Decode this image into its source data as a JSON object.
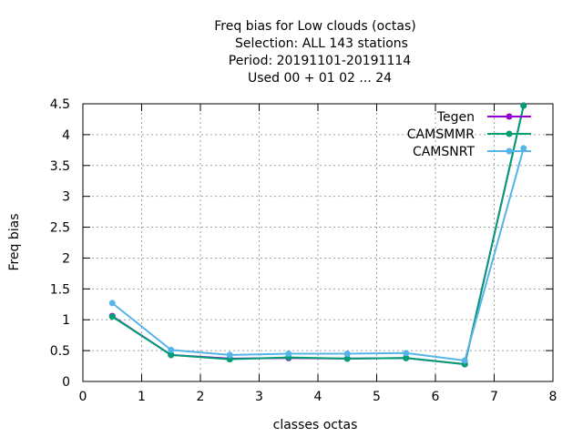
{
  "chart_data": {
    "type": "line",
    "title_lines": [
      "Freq bias  for Low clouds (octas)",
      "Selection: ALL    143 stations",
      "Period: 20191101-20191114",
      "Used  00 + 01 02 ... 24"
    ],
    "xlabel": "classes octas",
    "ylabel": "Freq bias",
    "xlim": [
      0,
      8
    ],
    "ylim": [
      0,
      4.5
    ],
    "xticks": [
      0,
      1,
      2,
      3,
      4,
      5,
      6,
      7,
      8
    ],
    "yticks": [
      0,
      0.5,
      1,
      1.5,
      2,
      2.5,
      3,
      3.5,
      4,
      4.5
    ],
    "ytick_labels": [
      "0",
      "0.5",
      "1",
      "1.5",
      "2",
      "2.5",
      "3",
      "3.5",
      "4",
      "4.5"
    ],
    "grid": true,
    "legend_position": "top-right",
    "x": [
      0.5,
      1.5,
      2.5,
      3.5,
      4.5,
      5.5,
      6.5,
      7.5
    ],
    "series": [
      {
        "name": "Tegen",
        "color": "#9400d3",
        "values": [
          1.06,
          0.43,
          0.37,
          0.38,
          0.37,
          0.38,
          0.28,
          4.47
        ]
      },
      {
        "name": "CAMSMMR",
        "color": "#009e73",
        "values": [
          1.05,
          0.43,
          0.36,
          0.39,
          0.37,
          0.38,
          0.28,
          4.47
        ]
      },
      {
        "name": "CAMSNRT",
        "color": "#56b4e9",
        "values": [
          1.27,
          0.51,
          0.43,
          0.45,
          0.45,
          0.46,
          0.34,
          3.78
        ]
      }
    ]
  }
}
